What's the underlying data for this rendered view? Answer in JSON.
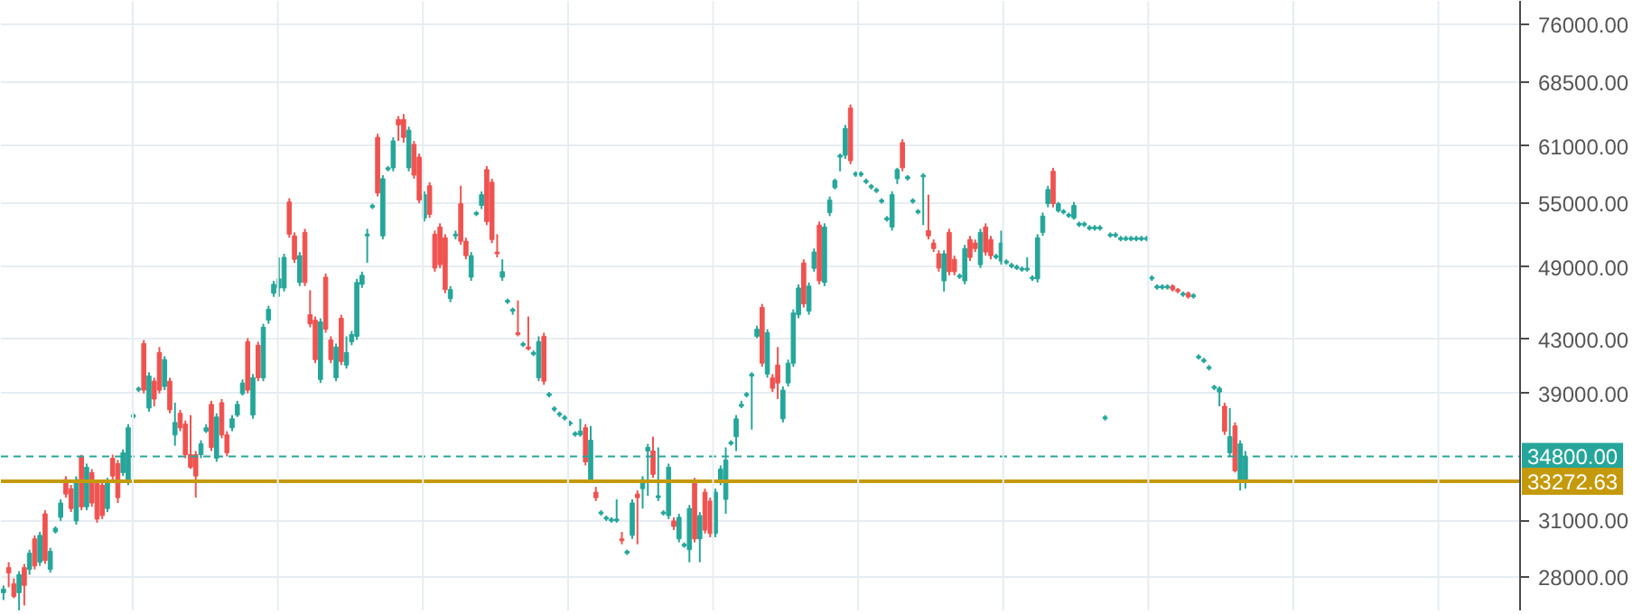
{
  "chart_data": {
    "type": "candlestick",
    "categories": [
      null,
      null,
      null,
      null,
      null,
      null,
      null,
      null,
      null,
      null,
      null,
      null,
      null,
      null,
      null,
      null,
      null,
      null,
      null,
      null,
      null,
      null,
      null,
      null,
      null,
      null,
      null,
      null,
      null,
      null,
      null,
      null,
      null,
      null,
      null,
      null,
      null,
      null,
      null,
      null,
      null,
      null,
      null,
      null,
      null,
      null,
      null,
      null,
      null,
      null,
      null,
      null,
      null,
      null,
      null,
      null,
      null,
      null,
      null,
      null,
      null,
      null,
      null,
      null,
      null,
      null,
      null,
      null,
      null,
      null,
      null,
      null,
      null,
      null,
      null,
      null,
      null,
      null,
      null,
      null,
      null,
      null,
      null,
      null,
      null,
      null,
      null,
      null,
      null,
      null,
      null,
      null,
      null,
      null,
      null,
      null,
      null,
      null,
      null,
      null,
      null,
      null,
      null,
      null,
      null,
      null,
      null,
      null,
      null,
      null,
      null,
      null,
      null,
      null,
      null,
      null,
      null,
      null,
      null,
      null,
      null,
      null,
      null,
      null,
      null,
      null,
      null,
      null,
      null,
      null,
      null,
      null,
      null,
      null,
      null,
      null,
      null,
      null,
      null,
      null,
      null,
      null,
      null,
      null,
      null,
      null,
      null,
      null,
      null,
      null,
      null,
      null,
      null,
      null,
      null,
      null,
      null,
      null,
      null,
      null,
      null,
      null,
      null,
      null,
      null,
      null,
      null,
      null,
      null,
      null,
      null,
      null,
      null,
      null,
      null,
      null,
      null,
      null,
      null,
      null,
      null,
      null,
      null,
      null,
      null,
      null,
      null,
      null,
      null,
      null,
      null,
      null,
      null,
      null,
      null,
      null,
      null,
      null,
      null,
      null,
      null,
      null,
      null,
      null,
      null,
      null,
      null,
      null,
      null,
      null,
      null,
      null,
      null,
      null,
      null,
      null,
      null,
      null,
      null,
      null,
      null,
      null,
      null,
      null,
      null,
      null,
      null,
      null,
      null,
      null,
      null,
      null,
      null,
      null,
      null,
      null,
      null,
      null,
      null,
      null,
      null,
      null,
      null,
      null,
      null,
      null,
      null,
      null,
      null,
      null,
      null,
      null,
      null,
      null,
      null,
      null,
      null,
      null,
      null,
      null,
      null,
      null,
      null,
      null,
      null,
      null,
      null,
      null,
      null,
      null,
      null,
      null,
      null,
      null,
      null,
      null,
      null,
      null,
      null,
      null,
      null,
      null,
      null,
      null,
      null,
      null,
      null,
      null,
      null,
      null,
      null,
      null,
      null,
      null,
      null,
      null,
      null,
      null,
      null,
      null,
      null,
      null,
      null,
      null,
      null,
      null,
      null,
      null,
      null,
      null,
      null,
      null,
      null,
      null,
      null,
      null
    ],
    "colors": [
      "#26a69a",
      "#ef5350",
      "#ef5350",
      "#26a69a",
      "#ef5350",
      "#26a69a",
      "#ef5350",
      "#26a69a",
      "#ef5350",
      "#26a69a",
      "#26a69a",
      "#26a69a",
      "#ef5350",
      "#ef5350",
      "#26a69a",
      "#ef5350",
      "#26a69a",
      "#ef5350",
      "#ef5350",
      "#ef5350",
      "#26a69a",
      "#ef5350",
      "#ef5350",
      "#26a69a",
      "#26a69a",
      "#26a69a",
      "#26a69a",
      "#ef5350",
      "#26a69a",
      "#ef5350",
      "#ef5350",
      "#26a69a",
      "#ef5350",
      "#26a69a",
      "#ef5350",
      "#ef5350",
      "#ef5350",
      "#ef5350",
      "#26a69a",
      "#26a69a",
      "#ef5350",
      "#26a69a",
      "#ef5350",
      "#ef5350",
      "#26a69a",
      "#26a69a",
      "#26a69a",
      "#ef5350",
      "#26a69a",
      "#ef5350",
      "#26a69a",
      "#26a69a",
      "#26a69a",
      "#26a69a",
      "#26a69a",
      "#ef5350",
      "#ef5350",
      "#26a69a",
      "#ef5350",
      "#ef5350",
      "#ef5350",
      "#26a69a",
      "#ef5350",
      "#ef5350",
      "#26a69a",
      "#ef5350",
      "#26a69a",
      "#26a69a",
      "#26a69a",
      "#26a69a",
      "#26a69a",
      "#26a69a",
      "#ef5350",
      "#26a69a",
      "#26a69a",
      "#26a69a",
      "#ef5350",
      "#ef5350",
      "#26a69a",
      "#ef5350",
      "#ef5350",
      "#26a69a",
      "#ef5350",
      "#ef5350",
      "#ef5350",
      "#ef5350",
      "#26a69a",
      "#26a69a",
      "#ef5350",
      "#ef5350",
      "#26a69a",
      "#26a69a",
      "#26a69a",
      "#ef5350",
      "#ef5350",
      "#ef5350",
      "#26a69a",
      "#26a69a",
      "#26a69a",
      "#ef5350",
      "#26a69a",
      "#ef5350",
      "#26a69a",
      "#26a69a",
      "#ef5350",
      "#26a69a",
      "#26a69a",
      "#26a69a",
      "#26a69a",
      "#26a69a",
      "#26a69a",
      "#26a69a",
      "#ef5350",
      "#26a69a",
      "#ef5350",
      "#26a69a",
      "#26a69a",
      "#26a69a",
      "#26a69a",
      "#ef5350",
      "#26a69a",
      "#26a69a",
      "#ef5350",
      "#26a69a",
      "#26a69a",
      "#ef5350",
      "#26a69a",
      "#26a69a",
      "#26a69a",
      "#ef5350",
      "#26a69a",
      "#26a69a",
      "#26a69a",
      "#ef5350",
      "#26a69a",
      "#ef5350",
      "#ef5350",
      "#26a69a",
      "#26a69a",
      "#26a69a",
      "#26a69a",
      "#26a69a",
      "#26a69a",
      "#26a69a",
      "#26a69a",
      "#26a69a",
      "#ef5350",
      "#26a69a",
      "#ef5350",
      "#ef5350",
      "#26a69a",
      "#26a69a",
      "#26a69a",
      "#26a69a",
      "#ef5350",
      "#26a69a",
      "#26a69a",
      "#ef5350",
      "#26a69a",
      "#26a69a",
      "#26a69a",
      "#26a69a",
      "#26a69a",
      "#ef5350",
      "#26a69a",
      "#26a69a",
      "#26a69a",
      "#26a69a",
      "#26a69a",
      "#26a69a",
      "#26a69a",
      "#26a69a",
      "#26a69a",
      "#ef5350",
      "#26a69a",
      "#26a69a",
      "#26a69a",
      "#26a69a",
      "#ef5350",
      "#ef5350",
      "#ef5350",
      "#26a69a",
      "#ef5350",
      "#ef5350",
      "#26a69a",
      "#26a69a",
      "#ef5350",
      "#ef5350",
      "#26a69a",
      "#ef5350",
      "#ef5350",
      "#26a69a",
      "#26a69a",
      "#26a69a",
      "#26a69a",
      "#26a69a",
      "#26a69a",
      "#26a69a",
      "#26a69a",
      "#26a69a",
      "#26a69a",
      "#26a69a",
      "#ef5350",
      "#26a69a",
      "#26a69a",
      "#26a69a",
      "#26a69a",
      "#26a69a",
      "#26a69a",
      "#26a69a",
      "#26a69a",
      "#26a69a",
      "#26a69a",
      "#26a69a",
      "#26a69a",
      "#26a69a",
      "#26a69a",
      "#26a69a",
      "#26a69a",
      "#26a69a",
      "#26a69a",
      "#26a69a",
      "#26a69a",
      "#26a69a",
      "#26a69a",
      "#ef5350",
      "#ef5350",
      "#26a69a",
      "#ef5350",
      "#26a69a",
      "#26a69a",
      "#26a69a",
      "#26a69a",
      "#26a69a",
      "#26a69a",
      "#ef5350",
      "#26a69a",
      "#ef5350",
      "#26a69a",
      "#26a69a",
      null,
      null,
      null,
      null,
      null,
      null,
      null,
      null,
      null,
      null,
      null,
      null,
      null,
      null,
      null,
      null,
      null,
      null,
      null,
      null,
      null,
      null,
      null,
      null,
      null,
      null,
      null,
      null,
      null,
      null,
      null,
      null,
      null,
      null,
      null,
      null,
      null,
      null,
      null,
      null,
      null,
      null,
      null,
      null,
      null,
      null,
      null,
      null,
      null,
      null,
      null,
      null,
      null,
      null,
      null,
      null,
      null,
      null,
      null,
      null,
      null,
      null,
      null,
      null,
      null,
      null,
      null,
      null,
      null,
      null,
      null,
      null,
      null,
      null,
      null,
      null
    ],
    "log": true,
    "grid": true,
    "ylim": [
      26300,
      79300
    ],
    "yticks": [
      {
        "value": 28000,
        "label": "28000.00"
      },
      {
        "value": 31000,
        "label": "31000.00"
      },
      {
        "value": 39000,
        "label": "39000.00"
      },
      {
        "value": 43000,
        "label": "43000.00"
      },
      {
        "value": 49000,
        "label": "49000.00"
      },
      {
        "value": 55000,
        "label": "55000.00"
      },
      {
        "value": 61000,
        "label": "61000.00"
      },
      {
        "value": 68500,
        "label": "68500.00"
      },
      {
        "value": 76000,
        "label": "76000.00"
      }
    ],
    "ref_lines": [
      {
        "axis": "y",
        "value": 34800,
        "label": "34800.00",
        "color": "#26a69a",
        "line_style": "dashed"
      },
      {
        "axis": "y",
        "value": 33272.63,
        "label": "33272.63",
        "color": "#c49a0c",
        "line_style": "solid"
      }
    ],
    "ohlc": [
      [
        27200,
        27560,
        26840,
        27380
      ],
      [
        28460,
        28740,
        27470,
        28190
      ],
      [
        27640,
        27910,
        26930,
        27020
      ],
      [
        27200,
        28280,
        26320,
        28100
      ],
      [
        28460,
        28650,
        26580,
        27560
      ],
      [
        28370,
        29400,
        28100,
        29210
      ],
      [
        29980,
        30170,
        28370,
        28550
      ],
      [
        28740,
        30370,
        28550,
        30170
      ],
      [
        31370,
        31570,
        28650,
        28830
      ],
      [
        28370,
        29500,
        28200,
        29310
      ],
      [
        30370,
        30660,
        30270,
        30560
      ],
      [
        31170,
        32200,
        30970,
        31990
      ],
      [
        33370,
        33580,
        32300,
        32510
      ],
      [
        32830,
        33050,
        31470,
        31670
      ],
      [
        30970,
        33580,
        30760,
        33370
      ],
      [
        34800,
        34900,
        31570,
        31770
      ],
      [
        31770,
        34350,
        31570,
        34120
      ],
      [
        33800,
        34010,
        31770,
        31990
      ],
      [
        33150,
        33370,
        30870,
        31070
      ],
      [
        33040,
        33260,
        31070,
        31270
      ],
      [
        31670,
        33480,
        31470,
        33260
      ],
      [
        34680,
        34910,
        33370,
        33590
      ],
      [
        34350,
        34580,
        31990,
        32300
      ],
      [
        33800,
        35250,
        33590,
        35030
      ],
      [
        33260,
        36890,
        33040,
        36650
      ],
      [
        37370,
        37620,
        37250,
        37500
      ],
      [
        39230,
        39490,
        39100,
        39360
      ],
      [
        42680,
        42950,
        39000,
        39230
      ],
      [
        37980,
        40520,
        37730,
        40250
      ],
      [
        39870,
        40120,
        38100,
        38600
      ],
      [
        41990,
        42410,
        39000,
        39230
      ],
      [
        39490,
        41720,
        39230,
        41460
      ],
      [
        39870,
        40120,
        37620,
        37860
      ],
      [
        36180,
        38350,
        35480,
        37000
      ],
      [
        37620,
        37860,
        36420,
        36650
      ],
      [
        36890,
        37130,
        34690,
        34910
      ],
      [
        34910,
        37500,
        34020,
        34130
      ],
      [
        34910,
        35140,
        32300,
        33590
      ],
      [
        34910,
        35830,
        34690,
        35600
      ],
      [
        36420,
        36890,
        36300,
        36650
      ],
      [
        38230,
        38480,
        35140,
        35370
      ],
      [
        34690,
        37620,
        34460,
        37370
      ],
      [
        38350,
        38600,
        35960,
        36180
      ],
      [
        36180,
        36420,
        34800,
        35030
      ],
      [
        36650,
        37500,
        36420,
        37250
      ],
      [
        37500,
        38480,
        37370,
        38230
      ],
      [
        38980,
        40000,
        38850,
        39740
      ],
      [
        42820,
        43100,
        39000,
        39230
      ],
      [
        37500,
        40390,
        37250,
        40120
      ],
      [
        42550,
        42820,
        39870,
        40120
      ],
      [
        40120,
        44230,
        39870,
        43950
      ],
      [
        44520,
        45700,
        44230,
        45400
      ],
      [
        46740,
        47800,
        46440,
        47500
      ],
      [
        47190,
        49870,
        46440,
        47970
      ],
      [
        47190,
        50200,
        46890,
        49870
      ],
      [
        55130,
        55500,
        51680,
        52010
      ],
      [
        51850,
        52180,
        49380,
        49700
      ],
      [
        47660,
        50360,
        47350,
        50030
      ],
      [
        52180,
        52520,
        47350,
        47660
      ],
      [
        44960,
        47000,
        43950,
        44230
      ],
      [
        44520,
        44810,
        41190,
        41460
      ],
      [
        39990,
        44670,
        39740,
        44380
      ],
      [
        48120,
        48440,
        43520,
        43800
      ],
      [
        42960,
        43240,
        41190,
        41460
      ],
      [
        40120,
        42680,
        39870,
        42410
      ],
      [
        44670,
        44960,
        41050,
        41320
      ],
      [
        41050,
        43240,
        40790,
        41990
      ],
      [
        42820,
        43660,
        42550,
        43380
      ],
      [
        43240,
        47970,
        42960,
        47660
      ],
      [
        47500,
        48600,
        47200,
        48280
      ],
      [
        51850,
        52520,
        49380,
        52010
      ],
      [
        54600,
        54960,
        54430,
        54780
      ],
      [
        61960,
        62360,
        55680,
        56030
      ],
      [
        51850,
        57870,
        51520,
        57500
      ],
      [
        58450,
        58830,
        58270,
        58640
      ],
      [
        58640,
        61960,
        58270,
        61560
      ],
      [
        63990,
        64400,
        61560,
        63380
      ],
      [
        63990,
        64630,
        61370,
        61960
      ],
      [
        58640,
        63170,
        58270,
        62770
      ],
      [
        61180,
        61560,
        57500,
        57870
      ],
      [
        59790,
        60180,
        55000,
        55320
      ],
      [
        53560,
        56200,
        53210,
        55860
      ],
      [
        56770,
        57130,
        53560,
        53910
      ],
      [
        52010,
        52350,
        48600,
        48920
      ],
      [
        52690,
        53040,
        48900,
        49220
      ],
      [
        51680,
        52010,
        46740,
        47050
      ],
      [
        46290,
        47350,
        45990,
        47050
      ],
      [
        51850,
        52350,
        51520,
        52010
      ],
      [
        54960,
        56770,
        51020,
        51350
      ],
      [
        51350,
        51680,
        49700,
        50030
      ],
      [
        48120,
        50360,
        47800,
        50030
      ],
      [
        53910,
        54250,
        53740,
        54080
      ],
      [
        54780,
        56200,
        54430,
        55860
      ],
      [
        58450,
        58830,
        52870,
        53210
      ],
      [
        57130,
        57500,
        51180,
        51510
      ],
      [
        50360,
        52010,
        49870,
        50200
      ],
      [
        48120,
        49700,
        47800,
        48600
      ],
      [
        46000,
        46290,
        45850,
        46140
      ],
      [
        45250,
        45550,
        44960,
        45400
      ],
      [
        43520,
        46140,
        43240,
        43380
      ],
      [
        42550,
        42820,
        42410,
        42680
      ],
      [
        42410,
        44810,
        42150,
        42280
      ],
      [
        41860,
        42150,
        41720,
        41990
      ],
      [
        40120,
        43240,
        39870,
        42820
      ],
      [
        43240,
        43520,
        39610,
        39870
      ],
      [
        38850,
        39100,
        38720,
        38980
      ],
      [
        37860,
        38100,
        37730,
        37980
      ],
      [
        37500,
        37740,
        37370,
        37620
      ],
      [
        37250,
        37500,
        37130,
        37370
      ],
      [
        36890,
        37130,
        36770,
        37010
      ],
      [
        36180,
        36420,
        36060,
        36300
      ],
      [
        36180,
        37250,
        36060,
        36420
      ],
      [
        36650,
        36890,
        34240,
        34460
      ],
      [
        33370,
        36770,
        33260,
        35830
      ],
      [
        32620,
        32940,
        32100,
        32300
      ],
      [
        31370,
        31570,
        31270,
        31470
      ],
      [
        31070,
        31270,
        30970,
        31170
      ],
      [
        30970,
        31170,
        30870,
        31070
      ],
      [
        30970,
        32200,
        30870,
        31070
      ],
      [
        29980,
        30360,
        29690,
        29880
      ],
      [
        29210,
        29400,
        29120,
        29310
      ],
      [
        30170,
        32200,
        29980,
        31990
      ],
      [
        32510,
        32720,
        29690,
        32300
      ],
      [
        32830,
        33580,
        31670,
        33370
      ],
      [
        35140,
        35600,
        32400,
        35370
      ],
      [
        35140,
        36060,
        33480,
        33690
      ],
      [
        32300,
        35370,
        32100,
        32410
      ],
      [
        31370,
        31570,
        31270,
        31470
      ],
      [
        31270,
        34350,
        31070,
        34130
      ],
      [
        30970,
        31170,
        30460,
        30660
      ],
      [
        29980,
        31370,
        29790,
        31170
      ],
      [
        29590,
        29790,
        29500,
        29690
      ],
      [
        29400,
        31880,
        28740,
        31670
      ],
      [
        33260,
        33480,
        29790,
        29980
      ],
      [
        29980,
        31470,
        28740,
        31270
      ],
      [
        32620,
        32830,
        30270,
        30460
      ],
      [
        32100,
        32300,
        30070,
        30270
      ],
      [
        30270,
        32830,
        30070,
        32620
      ],
      [
        33260,
        34240,
        33040,
        34010
      ],
      [
        32200,
        35370,
        31370,
        34570
      ],
      [
        35600,
        35830,
        35480,
        35710
      ],
      [
        36060,
        37500,
        35140,
        37250
      ],
      [
        38100,
        38480,
        37980,
        38230
      ],
      [
        38850,
        39100,
        38720,
        38980
      ],
      [
        40250,
        40520,
        36530,
        40390
      ],
      [
        43240,
        44080,
        43100,
        43800
      ],
      [
        45550,
        45850,
        40920,
        41190
      ],
      [
        40390,
        43800,
        40120,
        43520
      ],
      [
        40120,
        40390,
        39100,
        39360
      ],
      [
        41050,
        42410,
        38600,
        39740
      ],
      [
        37250,
        39490,
        37000,
        39230
      ],
      [
        39740,
        41460,
        39490,
        41190
      ],
      [
        41190,
        45400,
        40920,
        45100
      ],
      [
        44960,
        47500,
        44670,
        47190
      ],
      [
        49380,
        49700,
        45550,
        45850
      ],
      [
        45250,
        47660,
        44960,
        47350
      ],
      [
        48900,
        50690,
        48600,
        50360
      ],
      [
        52870,
        53210,
        47500,
        47800
      ],
      [
        47660,
        53040,
        47350,
        52690
      ],
      [
        54080,
        55680,
        53740,
        55320
      ],
      [
        56580,
        57500,
        56390,
        57310
      ],
      [
        59790,
        60180,
        58270,
        59990
      ],
      [
        59990,
        63380,
        59600,
        62970
      ],
      [
        65330,
        65760,
        59020,
        59400
      ],
      [
        57870,
        58270,
        57690,
        58080
      ],
      [
        57870,
        58270,
        57690,
        58080
      ],
      [
        57130,
        57500,
        56950,
        57310
      ],
      [
        56580,
        56950,
        56390,
        56770
      ],
      [
        56200,
        56580,
        56030,
        56390
      ],
      [
        55130,
        55500,
        54960,
        55320
      ],
      [
        53390,
        53740,
        53210,
        53560
      ],
      [
        52690,
        56200,
        52350,
        55860
      ],
      [
        57500,
        58640,
        56950,
        58450
      ],
      [
        61370,
        61760,
        58270,
        58640
      ],
      [
        57500,
        57870,
        57310,
        57700
      ],
      [
        55130,
        55500,
        54960,
        55320
      ],
      [
        54080,
        54430,
        53910,
        54250
      ],
      [
        57700,
        58080,
        52870,
        57870
      ],
      [
        52350,
        55860,
        51520,
        51850
      ],
      [
        51180,
        51520,
        50360,
        50680
      ],
      [
        50200,
        50520,
        48600,
        48920
      ],
      [
        47800,
        50520,
        46890,
        50200
      ],
      [
        52180,
        52520,
        48280,
        48600
      ],
      [
        49700,
        50030,
        48280,
        48600
      ],
      [
        48120,
        48440,
        47970,
        48280
      ],
      [
        47800,
        51020,
        47500,
        50680
      ],
      [
        51510,
        51850,
        49540,
        49870
      ],
      [
        51180,
        51510,
        50360,
        50680
      ],
      [
        49220,
        52520,
        48920,
        52180
      ],
      [
        52690,
        53040,
        50030,
        50360
      ],
      [
        51510,
        51850,
        49700,
        50030
      ],
      [
        49870,
        50200,
        49700,
        50030
      ],
      [
        49540,
        52350,
        49220,
        51180
      ],
      [
        49380,
        49700,
        49220,
        49540
      ],
      [
        49060,
        49380,
        48900,
        49220
      ],
      [
        48900,
        49220,
        48750,
        49060
      ],
      [
        48750,
        49060,
        48600,
        48900
      ],
      [
        48750,
        49870,
        48600,
        48900
      ],
      [
        47970,
        48280,
        47800,
        48120
      ],
      [
        47970,
        52010,
        47660,
        51680
      ],
      [
        52180,
        54080,
        51850,
        53740
      ],
      [
        54960,
        56770,
        54600,
        56390
      ],
      [
        58270,
        58640,
        54600,
        54960
      ],
      [
        54250,
        55130,
        54080,
        54960
      ],
      [
        54080,
        54430,
        53910,
        54250
      ],
      [
        53740,
        54080,
        53560,
        53910
      ],
      [
        53560,
        55130,
        53390,
        54780
      ],
      [
        52870,
        53210,
        52690,
        53040
      ],
      [
        52870,
        53210,
        52690,
        53040
      ],
      [
        52520,
        52870,
        52350,
        52690
      ],
      [
        52520,
        52870,
        52350,
        52690
      ],
      [
        52520,
        52870,
        52350,
        52690
      ],
      [
        37250,
        37500,
        37130,
        37370
      ],
      [
        51850,
        52180,
        51680,
        52010
      ],
      [
        51850,
        52180,
        51680,
        52010
      ],
      [
        51510,
        51850,
        51350,
        51680
      ],
      [
        51510,
        51850,
        51350,
        51680
      ],
      [
        51510,
        51850,
        51350,
        51680
      ],
      [
        51510,
        51850,
        51350,
        51680
      ],
      [
        51510,
        51850,
        51350,
        51680
      ],
      [
        51510,
        51850,
        51350,
        51680
      ],
      [
        47970,
        48280,
        47800,
        48120
      ],
      [
        47190,
        47500,
        47050,
        47350
      ],
      [
        47190,
        47500,
        47050,
        47350
      ],
      [
        47190,
        47500,
        47050,
        47350
      ],
      [
        47350,
        47500,
        46890,
        47050
      ],
      [
        47050,
        47190,
        46740,
        46890
      ],
      [
        46590,
        46890,
        46440,
        46740
      ],
      [
        46740,
        46890,
        46290,
        46440
      ],
      [
        46440,
        46740,
        46290,
        46590
      ],
      [
        41590,
        41860,
        41460,
        41720
      ],
      [
        41320,
        41590,
        41190,
        41460
      ],
      [
        40790,
        41050,
        40650,
        40920
      ],
      [
        39360,
        39610,
        39230,
        39490
      ],
      [
        39100,
        39490,
        38100,
        39360
      ],
      [
        38100,
        38350,
        36180,
        36420
      ],
      [
        35030,
        37980,
        34800,
        36060
      ],
      [
        36770,
        37010,
        33800,
        33910
      ],
      [
        33370,
        35830,
        32720,
        35600
      ],
      [
        33370,
        35140,
        32830,
        34800
      ],
      null,
      null,
      null,
      null,
      null,
      null,
      null,
      null,
      null,
      null,
      null,
      null,
      null,
      null,
      null,
      null,
      null,
      null,
      null,
      null,
      null,
      null,
      null,
      null,
      null,
      null,
      null,
      null,
      null,
      null,
      null,
      null,
      null,
      null,
      null,
      null,
      null,
      null,
      null,
      null,
      null,
      null,
      null,
      null,
      null,
      null,
      null,
      null,
      null,
      null,
      null,
      null,
      null,
      null,
      null,
      null,
      null,
      null,
      null,
      null,
      null,
      null,
      null,
      null,
      null,
      null,
      null,
      null,
      null,
      null,
      null,
      null,
      null,
      null,
      null,
      null
    ]
  }
}
